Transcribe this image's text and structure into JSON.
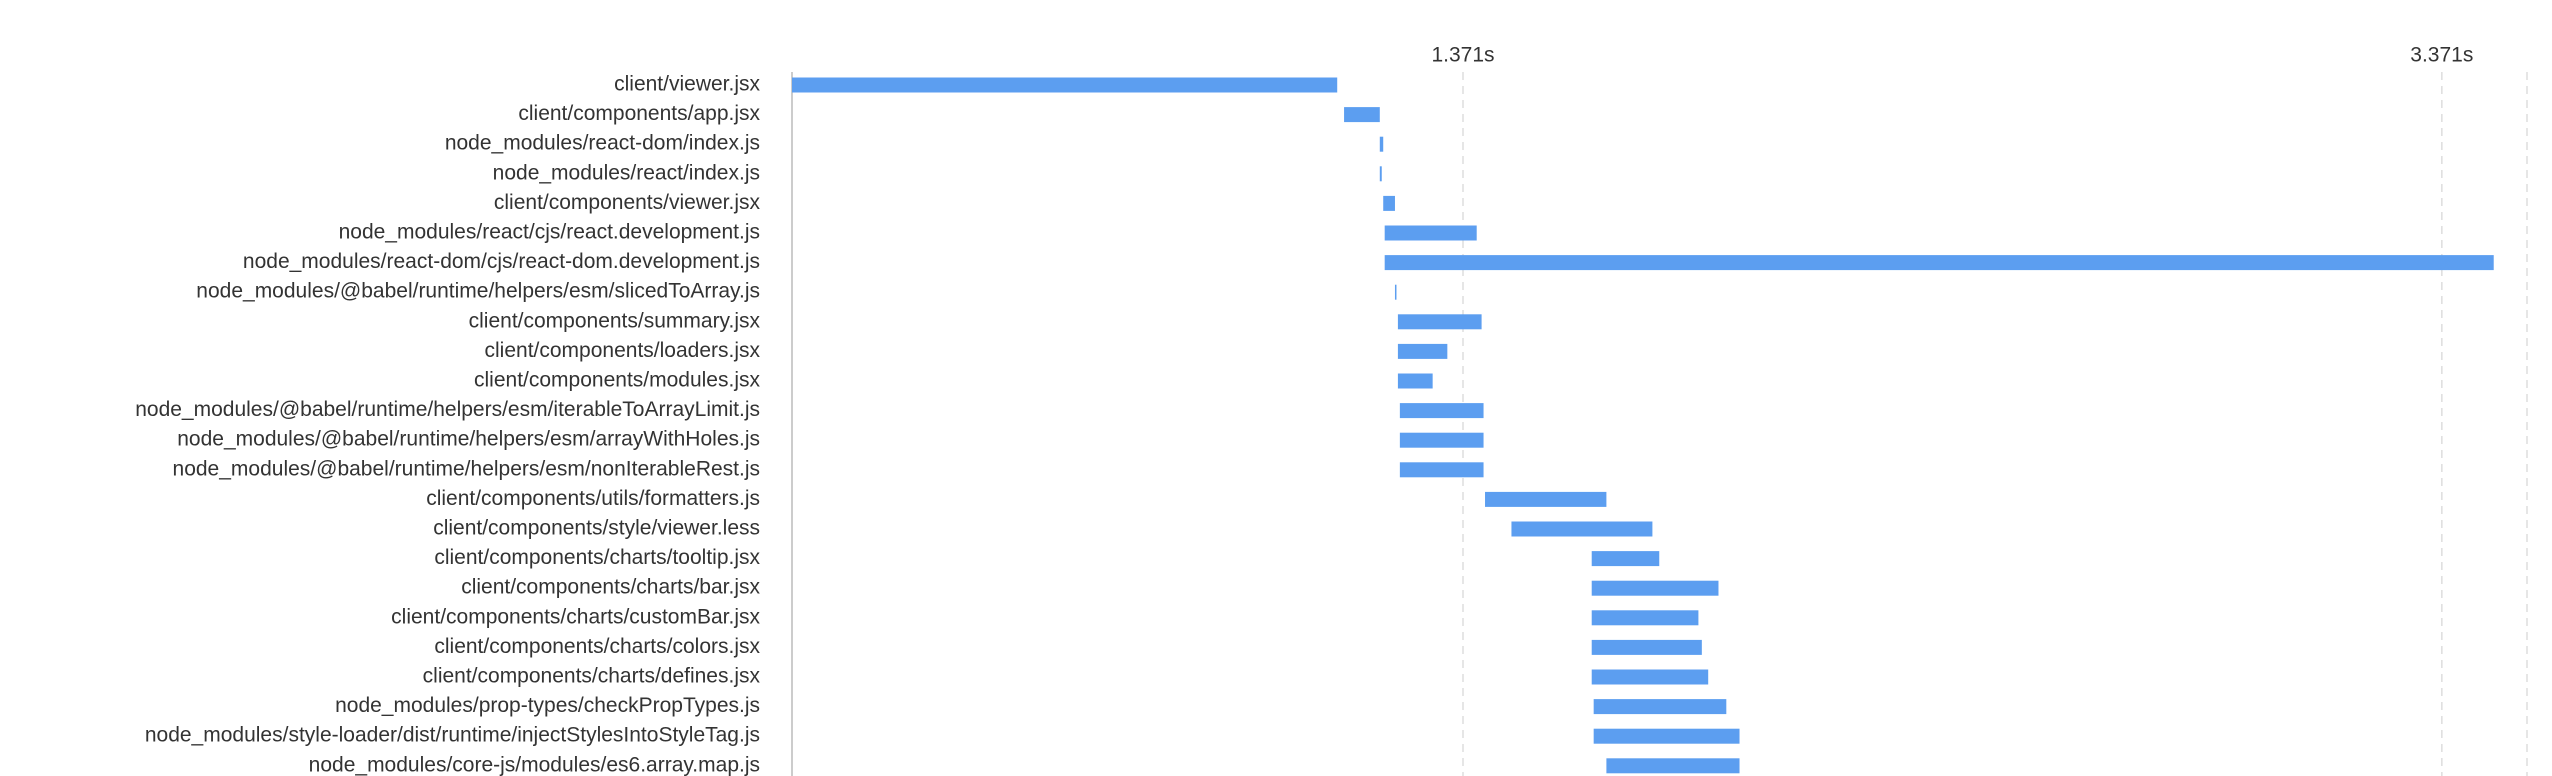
{
  "chart_data": {
    "type": "timeline",
    "categories": [
      "client/viewer.jsx",
      "client/components/app.jsx",
      "node_modules/react-dom/index.js",
      "node_modules/react/index.js",
      "client/components/viewer.jsx",
      "node_modules/react/cjs/react.development.js",
      "node_modules/react-dom/cjs/react-dom.development.js",
      "node_modules/@babel/runtime/helpers/esm/slicedToArray.js",
      "client/components/summary.jsx",
      "client/components/loaders.jsx",
      "client/components/modules.jsx",
      "node_modules/@babel/runtime/helpers/esm/iterableToArrayLimit.js",
      "node_modules/@babel/runtime/helpers/esm/arrayWithHoles.js",
      "node_modules/@babel/runtime/helpers/esm/nonIterableRest.js",
      "client/components/utils/formatters.js",
      "client/components/style/viewer.less",
      "client/components/charts/tooltip.jsx",
      "client/components/charts/bar.jsx",
      "client/components/charts/customBar.jsx",
      "client/components/charts/colors.jsx",
      "client/components/charts/defines.jsx",
      "node_modules/prop-types/checkPropTypes.js",
      "node_modules/style-loader/dist/runtime/injectStylesIntoStyleTag.js",
      "node_modules/core-js/modules/es6.array.map.js"
    ],
    "starts": [
      0,
      1.128,
      1.201,
      1.201,
      1.208,
      1.211,
      1.211,
      1.232,
      1.238,
      1.238,
      1.238,
      1.242,
      1.242,
      1.242,
      1.416,
      1.47,
      1.634,
      1.634,
      1.634,
      1.634,
      1.634,
      1.638,
      1.638,
      1.664
    ],
    "ends": [
      1.114,
      1.201,
      1.208,
      1.205,
      1.232,
      1.399,
      3.477,
      1.235,
      1.409,
      1.339,
      1.309,
      1.413,
      1.413,
      1.413,
      1.664,
      1.758,
      1.772,
      1.893,
      1.852,
      1.859,
      1.872,
      1.909,
      1.936,
      1.936
    ],
    "color": "#5c9ef0",
    "xlim": [
      0,
      3.545
    ],
    "xticks": [
      {
        "value": 1.371,
        "label": "1.371s"
      },
      {
        "value": 3.371,
        "label": "3.371s"
      }
    ],
    "grid": true
  }
}
